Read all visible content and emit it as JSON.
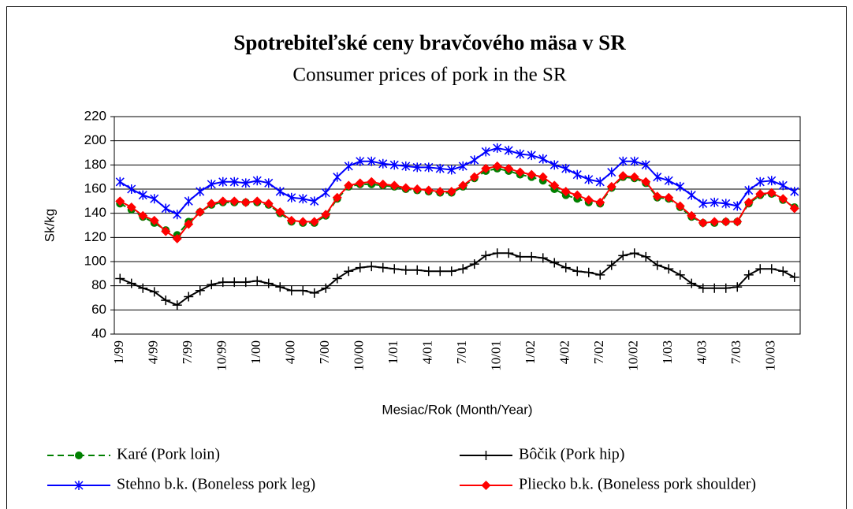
{
  "chart_data": {
    "type": "line",
    "title": "Spotrebiteľské ceny bravčového mäsa v SR",
    "subtitle": "Consumer prices of pork in the SR",
    "x_label": "Mesiac/Rok (Month/Year)",
    "y_label": "Sk/kg",
    "categories": [
      "1/99",
      null,
      null,
      "4/99",
      null,
      null,
      "7/99",
      null,
      null,
      "10/99",
      null,
      null,
      "1/00",
      null,
      null,
      "4/00",
      null,
      null,
      "7/00",
      null,
      null,
      "10/00",
      null,
      null,
      "1/01",
      null,
      null,
      "4/01",
      null,
      null,
      "7/01",
      null,
      null,
      "10/01",
      null,
      null,
      "1/02",
      null,
      null,
      "4/02",
      null,
      null,
      "7/02",
      null,
      null,
      "10/02",
      null,
      null,
      "1/03",
      null,
      null,
      "4/03",
      null,
      null,
      "7/03",
      null,
      null,
      "10/03",
      null,
      null
    ],
    "ylim": [
      40,
      220
    ],
    "yticks": [
      40,
      60,
      80,
      100,
      120,
      140,
      160,
      180,
      200,
      220
    ],
    "grid": true,
    "series": [
      {
        "name": "Karé (Pork loin)",
        "color": "#008000",
        "marker": "circle",
        "dash": true,
        "values": [
          148,
          143,
          137,
          132,
          126,
          122,
          133,
          141,
          147,
          149,
          149,
          149,
          149,
          147,
          140,
          133,
          132,
          132,
          138,
          152,
          162,
          164,
          164,
          163,
          162,
          160,
          159,
          158,
          157,
          157,
          162,
          169,
          175,
          177,
          175,
          172,
          170,
          167,
          160,
          155,
          152,
          149,
          148,
          161,
          170,
          169,
          165,
          153,
          152,
          145,
          137,
          132,
          132,
          133,
          133,
          148,
          155,
          156,
          151,
          145
        ]
      },
      {
        "name": "Bôčik (Pork hip)",
        "color": "#000000",
        "marker": "plus",
        "values": [
          86,
          82,
          78,
          75,
          68,
          64,
          71,
          76,
          81,
          83,
          83,
          83,
          84,
          82,
          79,
          76,
          76,
          74,
          78,
          86,
          92,
          95,
          96,
          95,
          94,
          93,
          93,
          92,
          92,
          92,
          94,
          98,
          105,
          107,
          107,
          104,
          104,
          103,
          99,
          95,
          92,
          91,
          89,
          97,
          105,
          107,
          104,
          97,
          94,
          89,
          82,
          78,
          78,
          78,
          79,
          89,
          94,
          94,
          92,
          87
        ]
      },
      {
        "name": "Stehno b.k. (Boneless pork leg)",
        "color": "#0000ff",
        "marker": "star",
        "values": [
          166,
          160,
          155,
          152,
          144,
          139,
          150,
          158,
          164,
          166,
          166,
          165,
          167,
          165,
          158,
          153,
          152,
          150,
          157,
          170,
          179,
          183,
          183,
          181,
          180,
          179,
          178,
          178,
          177,
          176,
          179,
          184,
          191,
          194,
          192,
          189,
          188,
          185,
          180,
          177,
          172,
          168,
          166,
          174,
          183,
          183,
          180,
          170,
          167,
          162,
          155,
          148,
          149,
          148,
          146,
          159,
          166,
          167,
          163,
          158
        ]
      },
      {
        "name": "Pliecko b.k. (Boneless pork shoulder)",
        "color": "#ff0000",
        "marker": "diamond",
        "values": [
          150,
          145,
          138,
          134,
          125,
          119,
          131,
          141,
          148,
          150,
          150,
          149,
          150,
          148,
          141,
          134,
          133,
          133,
          139,
          153,
          163,
          165,
          166,
          164,
          163,
          161,
          160,
          159,
          158,
          158,
          163,
          170,
          177,
          179,
          177,
          174,
          172,
          170,
          163,
          158,
          155,
          151,
          149,
          162,
          171,
          170,
          166,
          154,
          153,
          146,
          138,
          132,
          133,
          133,
          133,
          149,
          156,
          157,
          152,
          144
        ]
      }
    ]
  }
}
